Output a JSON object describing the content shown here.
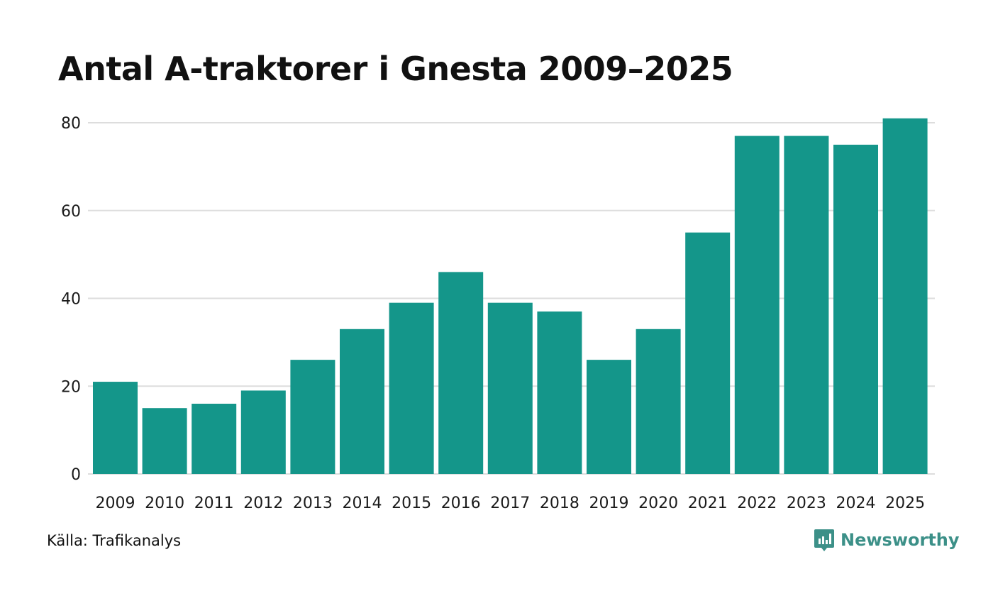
{
  "chart_data": {
    "type": "bar",
    "title": "Antal A-traktorer i Gnesta 2009–2025",
    "categories": [
      "2009",
      "2010",
      "2011",
      "2012",
      "2013",
      "2014",
      "2015",
      "2016",
      "2017",
      "2018",
      "2019",
      "2020",
      "2021",
      "2022",
      "2023",
      "2024",
      "2025"
    ],
    "values": [
      21,
      15,
      16,
      19,
      26,
      33,
      39,
      46,
      39,
      37,
      26,
      33,
      55,
      77,
      77,
      75,
      81
    ],
    "ylim": [
      0,
      80
    ],
    "yticks": [
      "0",
      "20",
      "40",
      "60",
      "80"
    ],
    "xlabel": "",
    "ylabel": "",
    "grid": true,
    "bar_color": "#14968a",
    "grid_color": "#dddddd"
  },
  "footer": {
    "source": "Källa: Trafikanalys",
    "brand": "Newsworthy",
    "brand_color": "#3c9088",
    "brand_icon": "newsworthy-logo-icon"
  }
}
